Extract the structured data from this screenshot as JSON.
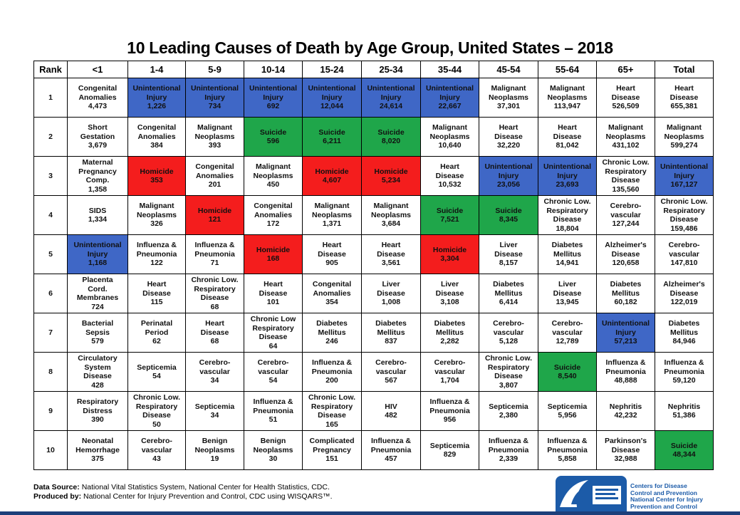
{
  "title": "10 Leading Causes of Death by Age Group, United States – 2018",
  "colors": {
    "blue": "#3F67C6",
    "green": "#1FA64A",
    "red": "#F41D1D"
  },
  "chart_data": {
    "type": "table",
    "title": "10 Leading Causes of Death by Age Group, United States – 2018",
    "columns": [
      "Rank",
      "<1",
      "1-4",
      "5-9",
      "10-14",
      "15-24",
      "25-34",
      "35-44",
      "45-54",
      "55-64",
      "65+",
      "Total"
    ],
    "rows": [
      {
        "rank": "1",
        "cells": [
          {
            "lines": [
              "Congenital",
              "Anomalies",
              "4,473"
            ],
            "c": ""
          },
          {
            "lines": [
              "Unintentional",
              "Injury",
              "1,226"
            ],
            "c": "blue"
          },
          {
            "lines": [
              "Unintentional",
              "Injury",
              "734"
            ],
            "c": "blue"
          },
          {
            "lines": [
              "Unintentional",
              "Injury",
              "692"
            ],
            "c": "blue"
          },
          {
            "lines": [
              "Unintentional",
              "Injury",
              "12,044"
            ],
            "c": "blue"
          },
          {
            "lines": [
              "Unintentional",
              "Injury",
              "24,614"
            ],
            "c": "blue"
          },
          {
            "lines": [
              "Unintentional",
              "Injury",
              "22,667"
            ],
            "c": "blue"
          },
          {
            "lines": [
              "Malignant",
              "Neoplasms",
              "37,301"
            ],
            "c": ""
          },
          {
            "lines": [
              "Malignant",
              "Neoplasms",
              "113,947"
            ],
            "c": ""
          },
          {
            "lines": [
              "Heart",
              "Disease",
              "526,509"
            ],
            "c": ""
          },
          {
            "lines": [
              "Heart",
              "Disease",
              "655,381"
            ],
            "c": ""
          }
        ]
      },
      {
        "rank": "2",
        "cells": [
          {
            "lines": [
              "Short",
              "Gestation",
              "3,679"
            ],
            "c": ""
          },
          {
            "lines": [
              "Congenital",
              "Anomalies",
              "384"
            ],
            "c": ""
          },
          {
            "lines": [
              "Malignant",
              "Neoplasms",
              "393"
            ],
            "c": ""
          },
          {
            "lines": [
              "Suicide",
              "596"
            ],
            "c": "green"
          },
          {
            "lines": [
              "Suicide",
              "6,211"
            ],
            "c": "green"
          },
          {
            "lines": [
              "Suicide",
              "8,020"
            ],
            "c": "green"
          },
          {
            "lines": [
              "Malignant",
              "Neoplasms",
              "10,640"
            ],
            "c": ""
          },
          {
            "lines": [
              "Heart",
              "Disease",
              "32,220"
            ],
            "c": ""
          },
          {
            "lines": [
              "Heart",
              "Disease",
              "81,042"
            ],
            "c": ""
          },
          {
            "lines": [
              "Malignant",
              "Neoplasms",
              "431,102"
            ],
            "c": ""
          },
          {
            "lines": [
              "Malignant",
              "Neoplasms",
              "599,274"
            ],
            "c": ""
          }
        ]
      },
      {
        "rank": "3",
        "cells": [
          {
            "lines": [
              "Maternal",
              "Pregnancy",
              "Comp.",
              "1,358"
            ],
            "c": ""
          },
          {
            "lines": [
              "Homicide",
              "353"
            ],
            "c": "red"
          },
          {
            "lines": [
              "Congenital",
              "Anomalies",
              "201"
            ],
            "c": ""
          },
          {
            "lines": [
              "Malignant",
              "Neoplasms",
              "450"
            ],
            "c": ""
          },
          {
            "lines": [
              "Homicide",
              "4,607"
            ],
            "c": "red"
          },
          {
            "lines": [
              "Homicide",
              "5,234"
            ],
            "c": "red"
          },
          {
            "lines": [
              "Heart",
              "Disease",
              "10,532"
            ],
            "c": ""
          },
          {
            "lines": [
              "Unintentional",
              "Injury",
              "23,056"
            ],
            "c": "blue"
          },
          {
            "lines": [
              "Unintentional",
              "Injury",
              "23,693"
            ],
            "c": "blue"
          },
          {
            "lines": [
              "Chronic Low.",
              "Respiratory",
              "Disease",
              "135,560"
            ],
            "c": ""
          },
          {
            "lines": [
              "Unintentional",
              "Injury",
              "167,127"
            ],
            "c": "blue"
          }
        ]
      },
      {
        "rank": "4",
        "cells": [
          {
            "lines": [
              "SIDS",
              "1,334"
            ],
            "c": ""
          },
          {
            "lines": [
              "Malignant",
              "Neoplasms",
              "326"
            ],
            "c": ""
          },
          {
            "lines": [
              "Homicide",
              "121"
            ],
            "c": "red"
          },
          {
            "lines": [
              "Congenital",
              "Anomalies",
              "172"
            ],
            "c": ""
          },
          {
            "lines": [
              "Malignant",
              "Neoplasms",
              "1,371"
            ],
            "c": ""
          },
          {
            "lines": [
              "Malignant",
              "Neoplasms",
              "3,684"
            ],
            "c": ""
          },
          {
            "lines": [
              "Suicide",
              "7,521"
            ],
            "c": "green"
          },
          {
            "lines": [
              "Suicide",
              "8,345"
            ],
            "c": "green"
          },
          {
            "lines": [
              "Chronic Low.",
              "Respiratory",
              "Disease",
              "18,804"
            ],
            "c": ""
          },
          {
            "lines": [
              "Cerebro-",
              "vascular",
              "127,244"
            ],
            "c": ""
          },
          {
            "lines": [
              "Chronic Low.",
              "Respiratory",
              "Disease",
              "159,486"
            ],
            "c": ""
          }
        ]
      },
      {
        "rank": "5",
        "cells": [
          {
            "lines": [
              "Unintentional",
              "Injury",
              "1,168"
            ],
            "c": "blue"
          },
          {
            "lines": [
              "Influenza &",
              "Pneumonia",
              "122"
            ],
            "c": ""
          },
          {
            "lines": [
              "Influenza &",
              "Pneumonia",
              "71"
            ],
            "c": ""
          },
          {
            "lines": [
              "Homicide",
              "168"
            ],
            "c": "red"
          },
          {
            "lines": [
              "Heart",
              "Disease",
              "905"
            ],
            "c": ""
          },
          {
            "lines": [
              "Heart",
              "Disease",
              "3,561"
            ],
            "c": ""
          },
          {
            "lines": [
              "Homicide",
              "3,304"
            ],
            "c": "red"
          },
          {
            "lines": [
              "Liver",
              "Disease",
              "8,157"
            ],
            "c": ""
          },
          {
            "lines": [
              "Diabetes",
              "Mellitus",
              "14,941"
            ],
            "c": ""
          },
          {
            "lines": [
              "Alzheimer's",
              "Disease",
              "120,658"
            ],
            "c": ""
          },
          {
            "lines": [
              "Cerebro-",
              "vascular",
              "147,810"
            ],
            "c": ""
          }
        ]
      },
      {
        "rank": "6",
        "cells": [
          {
            "lines": [
              "Placenta",
              "Cord.",
              "Membranes",
              "724"
            ],
            "c": ""
          },
          {
            "lines": [
              "Heart",
              "Disease",
              "115"
            ],
            "c": ""
          },
          {
            "lines": [
              "Chronic Low.",
              "Respiratory",
              "Disease",
              "68"
            ],
            "c": ""
          },
          {
            "lines": [
              "Heart",
              "Disease",
              "101"
            ],
            "c": ""
          },
          {
            "lines": [
              "Congenital",
              "Anomalies",
              "354"
            ],
            "c": ""
          },
          {
            "lines": [
              "Liver",
              "Disease",
              "1,008"
            ],
            "c": ""
          },
          {
            "lines": [
              "Liver",
              "Disease",
              "3,108"
            ],
            "c": ""
          },
          {
            "lines": [
              "Diabetes",
              "Mellitus",
              "6,414"
            ],
            "c": ""
          },
          {
            "lines": [
              "Liver",
              "Disease",
              "13,945"
            ],
            "c": ""
          },
          {
            "lines": [
              "Diabetes",
              "Mellitus",
              "60,182"
            ],
            "c": ""
          },
          {
            "lines": [
              "Alzheimer's",
              "Disease",
              "122,019"
            ],
            "c": ""
          }
        ]
      },
      {
        "rank": "7",
        "cells": [
          {
            "lines": [
              "Bacterial",
              "Sepsis",
              "579"
            ],
            "c": ""
          },
          {
            "lines": [
              "Perinatal",
              "Period",
              "62"
            ],
            "c": ""
          },
          {
            "lines": [
              "Heart",
              "Disease",
              "68"
            ],
            "c": ""
          },
          {
            "lines": [
              "Chronic Low",
              "Respiratory",
              "Disease",
              "64"
            ],
            "c": ""
          },
          {
            "lines": [
              "Diabetes",
              "Mellitus",
              "246"
            ],
            "c": ""
          },
          {
            "lines": [
              "Diabetes",
              "Mellitus",
              "837"
            ],
            "c": ""
          },
          {
            "lines": [
              "Diabetes",
              "Mellitus",
              "2,282"
            ],
            "c": ""
          },
          {
            "lines": [
              "Cerebro-",
              "vascular",
              "5,128"
            ],
            "c": ""
          },
          {
            "lines": [
              "Cerebro-",
              "vascular",
              "12,789"
            ],
            "c": ""
          },
          {
            "lines": [
              "Unintentional",
              "Injury",
              "57,213"
            ],
            "c": "blue"
          },
          {
            "lines": [
              "Diabetes",
              "Mellitus",
              "84,946"
            ],
            "c": ""
          }
        ]
      },
      {
        "rank": "8",
        "cells": [
          {
            "lines": [
              "Circulatory",
              "System",
              "Disease",
              "428"
            ],
            "c": ""
          },
          {
            "lines": [
              "Septicemia",
              "54"
            ],
            "c": ""
          },
          {
            "lines": [
              "Cerebro-",
              "vascular",
              "34"
            ],
            "c": ""
          },
          {
            "lines": [
              "Cerebro-",
              "vascular",
              "54"
            ],
            "c": ""
          },
          {
            "lines": [
              "Influenza &",
              "Pneumonia",
              "200"
            ],
            "c": ""
          },
          {
            "lines": [
              "Cerebro-",
              "vascular",
              "567"
            ],
            "c": ""
          },
          {
            "lines": [
              "Cerebro-",
              "vascular",
              "1,704"
            ],
            "c": ""
          },
          {
            "lines": [
              "Chronic Low.",
              "Respiratory",
              "Disease",
              "3,807"
            ],
            "c": ""
          },
          {
            "lines": [
              "Suicide",
              "8,540"
            ],
            "c": "green"
          },
          {
            "lines": [
              "Influenza &",
              "Pneumonia",
              "48,888"
            ],
            "c": ""
          },
          {
            "lines": [
              "Influenza &",
              "Pneumonia",
              "59,120"
            ],
            "c": ""
          }
        ]
      },
      {
        "rank": "9",
        "cells": [
          {
            "lines": [
              "Respiratory",
              "Distress",
              "390"
            ],
            "c": ""
          },
          {
            "lines": [
              "Chronic Low.",
              "Respiratory",
              "Disease",
              "50"
            ],
            "c": ""
          },
          {
            "lines": [
              "Septicemia",
              "34"
            ],
            "c": ""
          },
          {
            "lines": [
              "Influenza &",
              "Pneumonia",
              "51"
            ],
            "c": ""
          },
          {
            "lines": [
              "Chronic Low.",
              "Respiratory",
              "Disease",
              "165"
            ],
            "c": ""
          },
          {
            "lines": [
              "HIV",
              "482"
            ],
            "c": ""
          },
          {
            "lines": [
              "Influenza &",
              "Pneumonia",
              "956"
            ],
            "c": ""
          },
          {
            "lines": [
              "Septicemia",
              "2,380"
            ],
            "c": ""
          },
          {
            "lines": [
              "Septicemia",
              "5,956"
            ],
            "c": ""
          },
          {
            "lines": [
              "Nephritis",
              "42,232"
            ],
            "c": ""
          },
          {
            "lines": [
              "Nephritis",
              "51,386"
            ],
            "c": ""
          }
        ]
      },
      {
        "rank": "10",
        "cells": [
          {
            "lines": [
              "Neonatal",
              "Hemorrhage",
              "375"
            ],
            "c": ""
          },
          {
            "lines": [
              "Cerebro-",
              "vascular",
              "43"
            ],
            "c": ""
          },
          {
            "lines": [
              "Benign",
              "Neoplasms",
              "19"
            ],
            "c": ""
          },
          {
            "lines": [
              "Benign",
              "Neoplasms",
              "30"
            ],
            "c": ""
          },
          {
            "lines": [
              "Complicated",
              "Pregnancy",
              "151"
            ],
            "c": ""
          },
          {
            "lines": [
              "Influenza &",
              "Pneumonia",
              "457"
            ],
            "c": ""
          },
          {
            "lines": [
              "Septicemia",
              "829"
            ],
            "c": ""
          },
          {
            "lines": [
              "Influenza &",
              "Pneumonia",
              "2,339"
            ],
            "c": ""
          },
          {
            "lines": [
              "Influenza &",
              "Pneumonia",
              "5,858"
            ],
            "c": ""
          },
          {
            "lines": [
              "Parkinson's",
              "Disease",
              "32,988"
            ],
            "c": ""
          },
          {
            "lines": [
              "Suicide",
              "48,344"
            ],
            "c": "green"
          }
        ]
      }
    ]
  },
  "footer": {
    "source_label": "Data Source:",
    "source_text": " National Vital Statistics System, National Center for Health Statistics, CDC.",
    "produced_label": "Produced by:",
    "produced_text": " National Center for Injury Prevention and Control, CDC using WISQARS™."
  },
  "logo": {
    "line1": "Centers for Disease",
    "line2": "Control and Prevention",
    "line3": "National Center for Injury",
    "line4": "Prevention and Control"
  }
}
